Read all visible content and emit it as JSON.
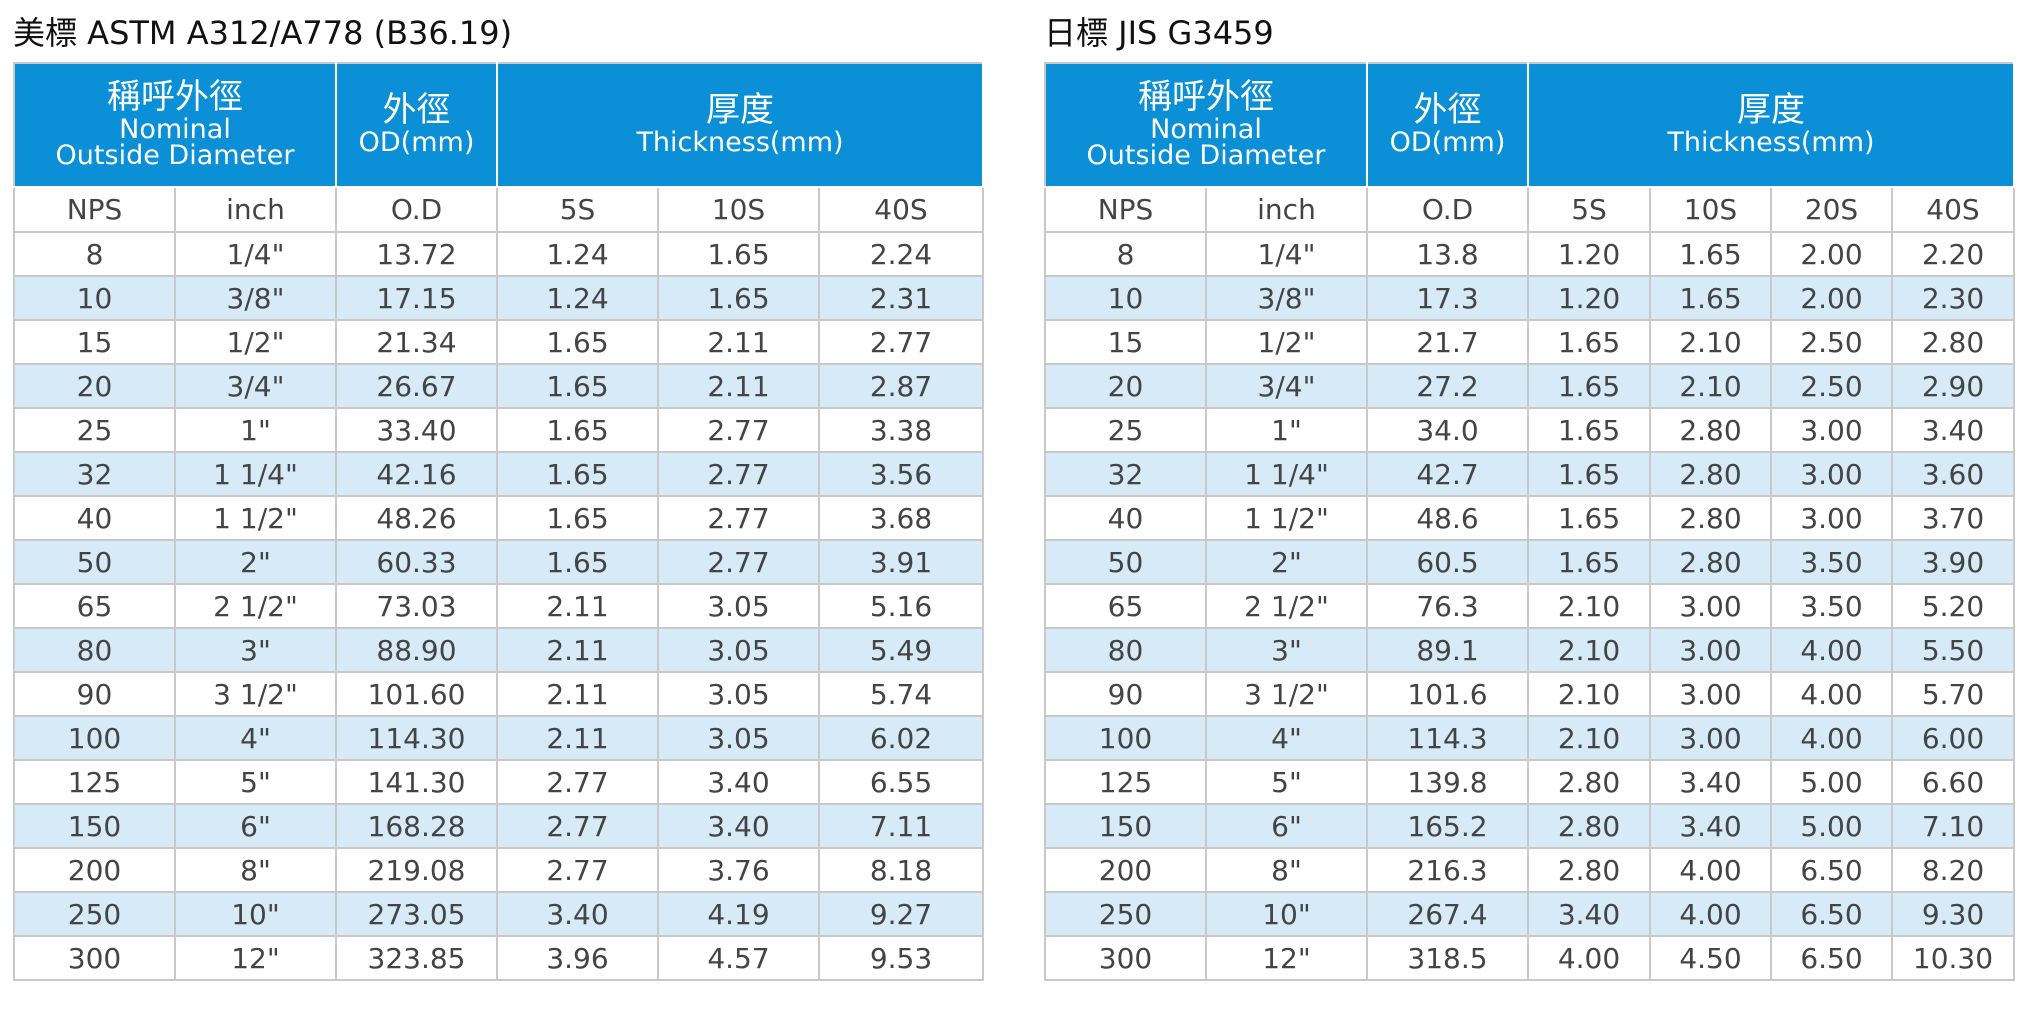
{
  "tables": [
    {
      "title": "美標 ASTM A312/A778 (B36.19)",
      "header": {
        "nominal_zh": "稱呼外徑",
        "nominal_en_1": "Nominal",
        "nominal_en_2": "Outside Diameter",
        "od_zh": "外徑",
        "od_en": "OD(mm)",
        "thickness_zh": "厚度",
        "thickness_en": "Thickness(mm)"
      },
      "subheaders": [
        "NPS",
        "inch",
        "O.D",
        "5S",
        "10S",
        "40S"
      ],
      "rows": [
        [
          "8",
          "1/4\"",
          "13.72",
          "1.24",
          "1.65",
          "2.24"
        ],
        [
          "10",
          "3/8\"",
          "17.15",
          "1.24",
          "1.65",
          "2.31"
        ],
        [
          "15",
          "1/2\"",
          "21.34",
          "1.65",
          "2.11",
          "2.77"
        ],
        [
          "20",
          "3/4\"",
          "26.67",
          "1.65",
          "2.11",
          "2.87"
        ],
        [
          "25",
          "1\"",
          "33.40",
          "1.65",
          "2.77",
          "3.38"
        ],
        [
          "32",
          "1 1/4\"",
          "42.16",
          "1.65",
          "2.77",
          "3.56"
        ],
        [
          "40",
          "1 1/2\"",
          "48.26",
          "1.65",
          "2.77",
          "3.68"
        ],
        [
          "50",
          "2\"",
          "60.33",
          "1.65",
          "2.77",
          "3.91"
        ],
        [
          "65",
          "2 1/2\"",
          "73.03",
          "2.11",
          "3.05",
          "5.16"
        ],
        [
          "80",
          "3\"",
          "88.90",
          "2.11",
          "3.05",
          "5.49"
        ],
        [
          "90",
          "3 1/2\"",
          "101.60",
          "2.11",
          "3.05",
          "5.74"
        ],
        [
          "100",
          "4\"",
          "114.30",
          "2.11",
          "3.05",
          "6.02"
        ],
        [
          "125",
          "5\"",
          "141.30",
          "2.77",
          "3.40",
          "6.55"
        ],
        [
          "150",
          "6\"",
          "168.28",
          "2.77",
          "3.40",
          "7.11"
        ],
        [
          "200",
          "8\"",
          "219.08",
          "2.77",
          "3.76",
          "8.18"
        ],
        [
          "250",
          "10\"",
          "273.05",
          "3.40",
          "4.19",
          "9.27"
        ],
        [
          "300",
          "12\"",
          "323.85",
          "3.96",
          "4.57",
          "9.53"
        ]
      ]
    },
    {
      "title": "日標  JIS G3459",
      "header": {
        "nominal_zh": "稱呼外徑",
        "nominal_en_1": "Nominal",
        "nominal_en_2": "Outside Diameter",
        "od_zh": "外徑",
        "od_en": "OD(mm)",
        "thickness_zh": "厚度",
        "thickness_en": "Thickness(mm)"
      },
      "subheaders": [
        "NPS",
        "inch",
        "O.D",
        "5S",
        "10S",
        "20S",
        "40S"
      ],
      "rows": [
        [
          "8",
          "1/4\"",
          "13.8",
          "1.20",
          "1.65",
          "2.00",
          "2.20"
        ],
        [
          "10",
          "3/8\"",
          "17.3",
          "1.20",
          "1.65",
          "2.00",
          "2.30"
        ],
        [
          "15",
          "1/2\"",
          "21.7",
          "1.65",
          "2.10",
          "2.50",
          "2.80"
        ],
        [
          "20",
          "3/4\"",
          "27.2",
          "1.65",
          "2.10",
          "2.50",
          "2.90"
        ],
        [
          "25",
          "1\"",
          "34.0",
          "1.65",
          "2.80",
          "3.00",
          "3.40"
        ],
        [
          "32",
          "1 1/4\"",
          "42.7",
          "1.65",
          "2.80",
          "3.00",
          "3.60"
        ],
        [
          "40",
          "1 1/2\"",
          "48.6",
          "1.65",
          "2.80",
          "3.00",
          "3.70"
        ],
        [
          "50",
          "2\"",
          "60.5",
          "1.65",
          "2.80",
          "3.50",
          "3.90"
        ],
        [
          "65",
          "2 1/2\"",
          "76.3",
          "2.10",
          "3.00",
          "3.50",
          "5.20"
        ],
        [
          "80",
          "3\"",
          "89.1",
          "2.10",
          "3.00",
          "4.00",
          "5.50"
        ],
        [
          "90",
          "3 1/2\"",
          "101.6",
          "2.10",
          "3.00",
          "4.00",
          "5.70"
        ],
        [
          "100",
          "4\"",
          "114.3",
          "2.10",
          "3.00",
          "4.00",
          "6.00"
        ],
        [
          "125",
          "5\"",
          "139.8",
          "2.80",
          "3.40",
          "5.00",
          "6.60"
        ],
        [
          "150",
          "6\"",
          "165.2",
          "2.80",
          "3.40",
          "5.00",
          "7.10"
        ],
        [
          "200",
          "8\"",
          "216.3",
          "2.80",
          "4.00",
          "6.50",
          "8.20"
        ],
        [
          "250",
          "10\"",
          "267.4",
          "3.40",
          "4.00",
          "6.50",
          "9.30"
        ],
        [
          "300",
          "12\"",
          "318.5",
          "4.00",
          "4.50",
          "6.50",
          "10.30"
        ]
      ]
    }
  ]
}
